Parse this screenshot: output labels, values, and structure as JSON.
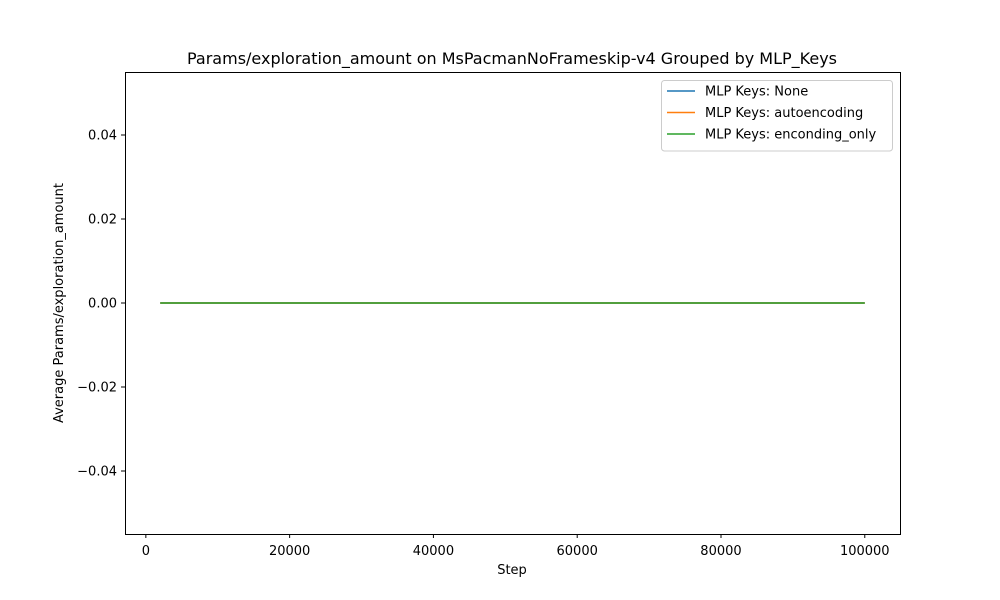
{
  "chart_data": {
    "type": "line",
    "title": "Params/exploration_amount on MsPacmanNoFrameskip-v4 Grouped by MLP_Keys",
    "xlabel": "Step",
    "ylabel": "Average Params/exploration_amount",
    "xlim": [
      -2900,
      104900
    ],
    "ylim": [
      -0.055,
      0.055
    ],
    "xticks": [
      0,
      20000,
      40000,
      60000,
      80000,
      100000
    ],
    "xtick_labels": [
      "0",
      "20000",
      "40000",
      "60000",
      "80000",
      "100000"
    ],
    "yticks": [
      -0.04,
      -0.02,
      0.0,
      0.02,
      0.04
    ],
    "ytick_labels": [
      "−0.04",
      "−0.02",
      "0.00",
      "0.02",
      "0.04"
    ],
    "grid": false,
    "legend_position": "upper right",
    "series": [
      {
        "name": "MLP Keys: None",
        "color": "#1f77b4",
        "x": [
          2000,
          100000
        ],
        "y": [
          0.0,
          0.0
        ]
      },
      {
        "name": "MLP Keys: autoencoding",
        "color": "#ff7f0e",
        "x": [
          2000,
          100000
        ],
        "y": [
          0.0,
          0.0
        ]
      },
      {
        "name": "MLP Keys: enconding_only",
        "color": "#2ca02c",
        "x": [
          2000,
          100000
        ],
        "y": [
          0.0,
          0.0
        ]
      }
    ]
  }
}
